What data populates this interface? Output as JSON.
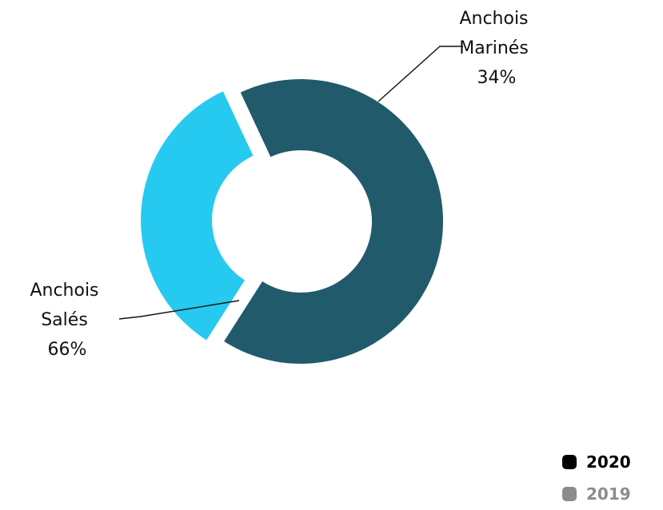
{
  "chart_data": {
    "type": "pie",
    "style": "donut",
    "categories": [
      "Anchois Salés",
      "Anchois Marinés"
    ],
    "values": [
      66,
      34
    ],
    "colors": [
      "#215B6B",
      "#26C9EF"
    ],
    "data_labels": [
      [
        "Anchois",
        "Salés",
        "66%"
      ],
      [
        "Anchois",
        "Marinés",
        "34%"
      ]
    ],
    "exploded_slice": "Anchois Marinés",
    "legend": {
      "placement": "bottom-right",
      "items": [
        {
          "label": "2020",
          "color": "#000000"
        },
        {
          "label": "2019",
          "color": "#8C8C8C"
        }
      ]
    }
  }
}
